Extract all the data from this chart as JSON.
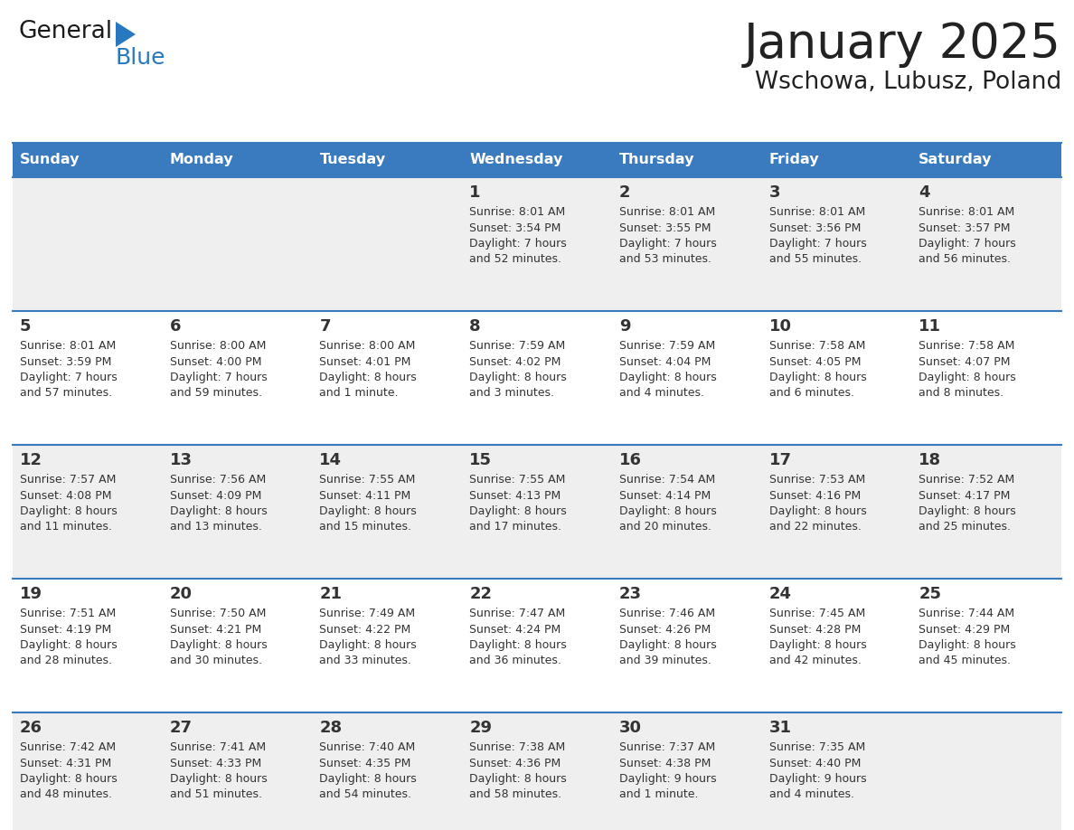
{
  "title": "January 2025",
  "subtitle": "Wschowa, Lubusz, Poland",
  "header_bg_color": "#3a7abf",
  "header_text_color": "#ffffff",
  "row_bg_even": "#efefef",
  "row_bg_odd": "#ffffff",
  "border_color": "#3a7abf",
  "day_headers": [
    "Sunday",
    "Monday",
    "Tuesday",
    "Wednesday",
    "Thursday",
    "Friday",
    "Saturday"
  ],
  "title_color": "#222222",
  "subtitle_color": "#222222",
  "cell_text_color": "#333333",
  "day_num_color": "#333333",
  "logo_general_color": "#1a1a1a",
  "logo_blue_color": "#2878c0",
  "logo_triangle_color": "#2878c0",
  "calendar": [
    [
      {
        "day": null,
        "info": null
      },
      {
        "day": null,
        "info": null
      },
      {
        "day": null,
        "info": null
      },
      {
        "day": 1,
        "info": "Sunrise: 8:01 AM\nSunset: 3:54 PM\nDaylight: 7 hours\nand 52 minutes."
      },
      {
        "day": 2,
        "info": "Sunrise: 8:01 AM\nSunset: 3:55 PM\nDaylight: 7 hours\nand 53 minutes."
      },
      {
        "day": 3,
        "info": "Sunrise: 8:01 AM\nSunset: 3:56 PM\nDaylight: 7 hours\nand 55 minutes."
      },
      {
        "day": 4,
        "info": "Sunrise: 8:01 AM\nSunset: 3:57 PM\nDaylight: 7 hours\nand 56 minutes."
      }
    ],
    [
      {
        "day": 5,
        "info": "Sunrise: 8:01 AM\nSunset: 3:59 PM\nDaylight: 7 hours\nand 57 minutes."
      },
      {
        "day": 6,
        "info": "Sunrise: 8:00 AM\nSunset: 4:00 PM\nDaylight: 7 hours\nand 59 minutes."
      },
      {
        "day": 7,
        "info": "Sunrise: 8:00 AM\nSunset: 4:01 PM\nDaylight: 8 hours\nand 1 minute."
      },
      {
        "day": 8,
        "info": "Sunrise: 7:59 AM\nSunset: 4:02 PM\nDaylight: 8 hours\nand 3 minutes."
      },
      {
        "day": 9,
        "info": "Sunrise: 7:59 AM\nSunset: 4:04 PM\nDaylight: 8 hours\nand 4 minutes."
      },
      {
        "day": 10,
        "info": "Sunrise: 7:58 AM\nSunset: 4:05 PM\nDaylight: 8 hours\nand 6 minutes."
      },
      {
        "day": 11,
        "info": "Sunrise: 7:58 AM\nSunset: 4:07 PM\nDaylight: 8 hours\nand 8 minutes."
      }
    ],
    [
      {
        "day": 12,
        "info": "Sunrise: 7:57 AM\nSunset: 4:08 PM\nDaylight: 8 hours\nand 11 minutes."
      },
      {
        "day": 13,
        "info": "Sunrise: 7:56 AM\nSunset: 4:09 PM\nDaylight: 8 hours\nand 13 minutes."
      },
      {
        "day": 14,
        "info": "Sunrise: 7:55 AM\nSunset: 4:11 PM\nDaylight: 8 hours\nand 15 minutes."
      },
      {
        "day": 15,
        "info": "Sunrise: 7:55 AM\nSunset: 4:13 PM\nDaylight: 8 hours\nand 17 minutes."
      },
      {
        "day": 16,
        "info": "Sunrise: 7:54 AM\nSunset: 4:14 PM\nDaylight: 8 hours\nand 20 minutes."
      },
      {
        "day": 17,
        "info": "Sunrise: 7:53 AM\nSunset: 4:16 PM\nDaylight: 8 hours\nand 22 minutes."
      },
      {
        "day": 18,
        "info": "Sunrise: 7:52 AM\nSunset: 4:17 PM\nDaylight: 8 hours\nand 25 minutes."
      }
    ],
    [
      {
        "day": 19,
        "info": "Sunrise: 7:51 AM\nSunset: 4:19 PM\nDaylight: 8 hours\nand 28 minutes."
      },
      {
        "day": 20,
        "info": "Sunrise: 7:50 AM\nSunset: 4:21 PM\nDaylight: 8 hours\nand 30 minutes."
      },
      {
        "day": 21,
        "info": "Sunrise: 7:49 AM\nSunset: 4:22 PM\nDaylight: 8 hours\nand 33 minutes."
      },
      {
        "day": 22,
        "info": "Sunrise: 7:47 AM\nSunset: 4:24 PM\nDaylight: 8 hours\nand 36 minutes."
      },
      {
        "day": 23,
        "info": "Sunrise: 7:46 AM\nSunset: 4:26 PM\nDaylight: 8 hours\nand 39 minutes."
      },
      {
        "day": 24,
        "info": "Sunrise: 7:45 AM\nSunset: 4:28 PM\nDaylight: 8 hours\nand 42 minutes."
      },
      {
        "day": 25,
        "info": "Sunrise: 7:44 AM\nSunset: 4:29 PM\nDaylight: 8 hours\nand 45 minutes."
      }
    ],
    [
      {
        "day": 26,
        "info": "Sunrise: 7:42 AM\nSunset: 4:31 PM\nDaylight: 8 hours\nand 48 minutes."
      },
      {
        "day": 27,
        "info": "Sunrise: 7:41 AM\nSunset: 4:33 PM\nDaylight: 8 hours\nand 51 minutes."
      },
      {
        "day": 28,
        "info": "Sunrise: 7:40 AM\nSunset: 4:35 PM\nDaylight: 8 hours\nand 54 minutes."
      },
      {
        "day": 29,
        "info": "Sunrise: 7:38 AM\nSunset: 4:36 PM\nDaylight: 8 hours\nand 58 minutes."
      },
      {
        "day": 30,
        "info": "Sunrise: 7:37 AM\nSunset: 4:38 PM\nDaylight: 9 hours\nand 1 minute."
      },
      {
        "day": 31,
        "info": "Sunrise: 7:35 AM\nSunset: 4:40 PM\nDaylight: 9 hours\nand 4 minutes."
      },
      {
        "day": null,
        "info": null
      }
    ]
  ]
}
